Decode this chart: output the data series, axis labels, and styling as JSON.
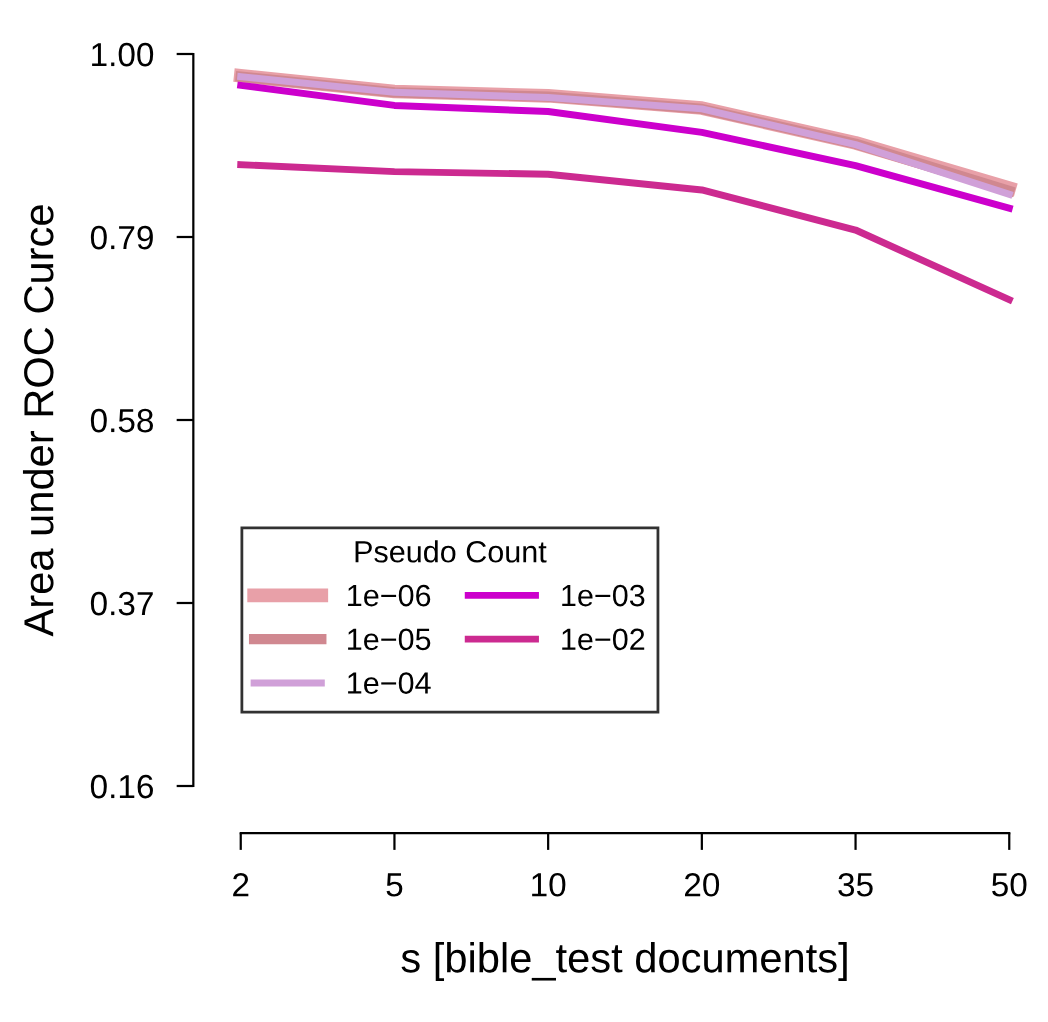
{
  "chart_data": {
    "type": "line",
    "xlabel": "s [bible_test documents]",
    "ylabel": "Area under ROC Curce",
    "legend_title": "Pseudo Count",
    "categories": [
      "2",
      "5",
      "10",
      "20",
      "35",
      "50"
    ],
    "series": [
      {
        "name": "1e−06",
        "color": "#e8a0a8",
        "values": [
          0.975,
          0.957,
          0.952,
          0.938,
          0.898,
          0.846
        ]
      },
      {
        "name": "1e−05",
        "color": "#d08890",
        "values": [
          0.974,
          0.956,
          0.951,
          0.937,
          0.897,
          0.843
        ]
      },
      {
        "name": "1e−04",
        "color": "#d0a0d8",
        "values": [
          0.974,
          0.956,
          0.95,
          0.937,
          0.896,
          0.839
        ]
      },
      {
        "name": "1e−03",
        "color": "#cc00cc",
        "values": [
          0.964,
          0.941,
          0.934,
          0.91,
          0.872,
          0.823
        ]
      },
      {
        "name": "1e−02",
        "color": "#cc2a90",
        "values": [
          0.873,
          0.865,
          0.862,
          0.844,
          0.798,
          0.718
        ]
      }
    ],
    "ylim": [
      0.16,
      1.0
    ],
    "yticks": [
      0.16,
      0.37,
      0.58,
      0.79,
      {
        "value": 1.0,
        "label": "1.00"
      }
    ],
    "grid": false,
    "legend": "bottom left",
    "marker": "none",
    "line_style": "solid"
  }
}
